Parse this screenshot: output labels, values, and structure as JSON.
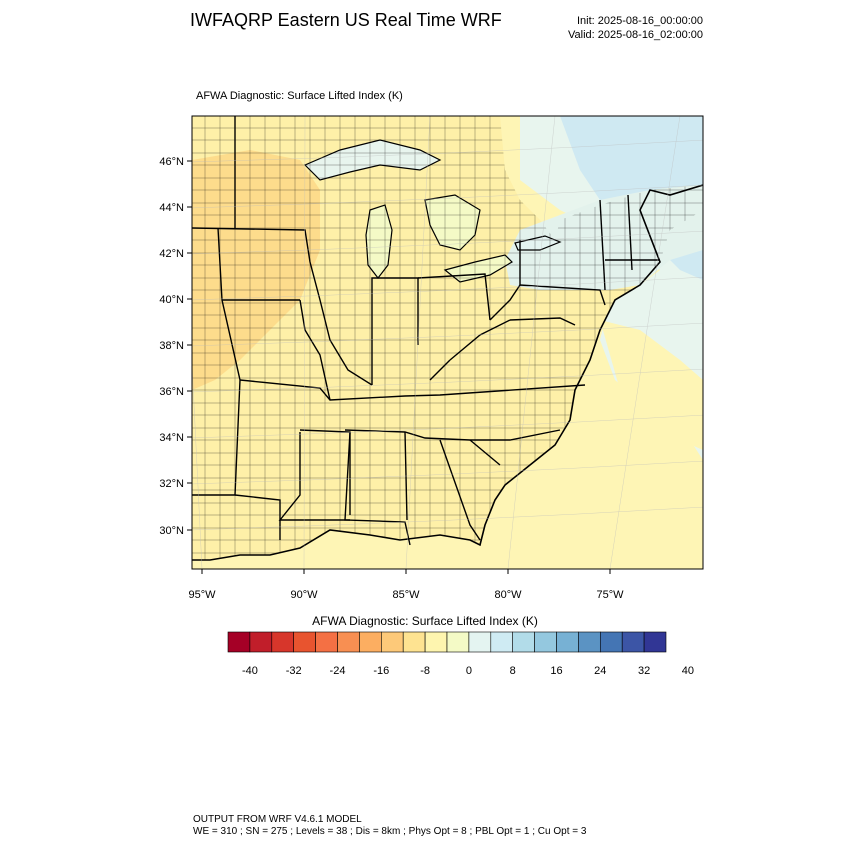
{
  "header": {
    "title": "IWFAQRP Eastern US Real Time WRF",
    "init": "Init: 2025-08-16_00:00:00",
    "valid": "Valid: 2025-08-16_02:00:00"
  },
  "plot": {
    "title": "AFWA Diagnostic: Surface Lifted Index   (K)",
    "lat_labels": [
      "46°N",
      "44°N",
      "42°N",
      "40°N",
      "38°N",
      "36°N",
      "34°N",
      "32°N",
      "30°N"
    ],
    "lon_labels": [
      "95°W",
      "90°W",
      "85°W",
      "80°W",
      "75°W"
    ]
  },
  "colorbar": {
    "title": "AFWA Diagnostic: Surface Lifted Index  (K)",
    "tick_labels": [
      "-40",
      "-32",
      "-24",
      "-16",
      "-8",
      "0",
      "8",
      "16",
      "24",
      "32",
      "40"
    ],
    "colors": [
      "#a50026",
      "#c11e2a",
      "#d7362b",
      "#e8542f",
      "#f47044",
      "#f88f52",
      "#fcae61",
      "#fdc979",
      "#fee391",
      "#fef5af",
      "#f4fac6",
      "#e4f4f1",
      "#cfebf3",
      "#b2dce9",
      "#94c8df",
      "#77b1d4",
      "#5b93c3",
      "#4475b4",
      "#3c55a6",
      "#313695"
    ]
  },
  "footer": {
    "line1": "OUTPUT FROM WRF V4.6.1 MODEL",
    "line2": "WE = 310 ; SN = 275 ; Levels = 38 ; Dis = 8km ; Phys Opt = 8 ; PBL Opt = 1 ; Cu Opt = 3"
  },
  "map_colors": {
    "land_warm": "#fef0a8",
    "land_orange": "#fdd887",
    "ocean_yellow": "#fef5b5",
    "ocean_light": "#e8f5ee",
    "ocean_blue": "#cfe9f2"
  }
}
